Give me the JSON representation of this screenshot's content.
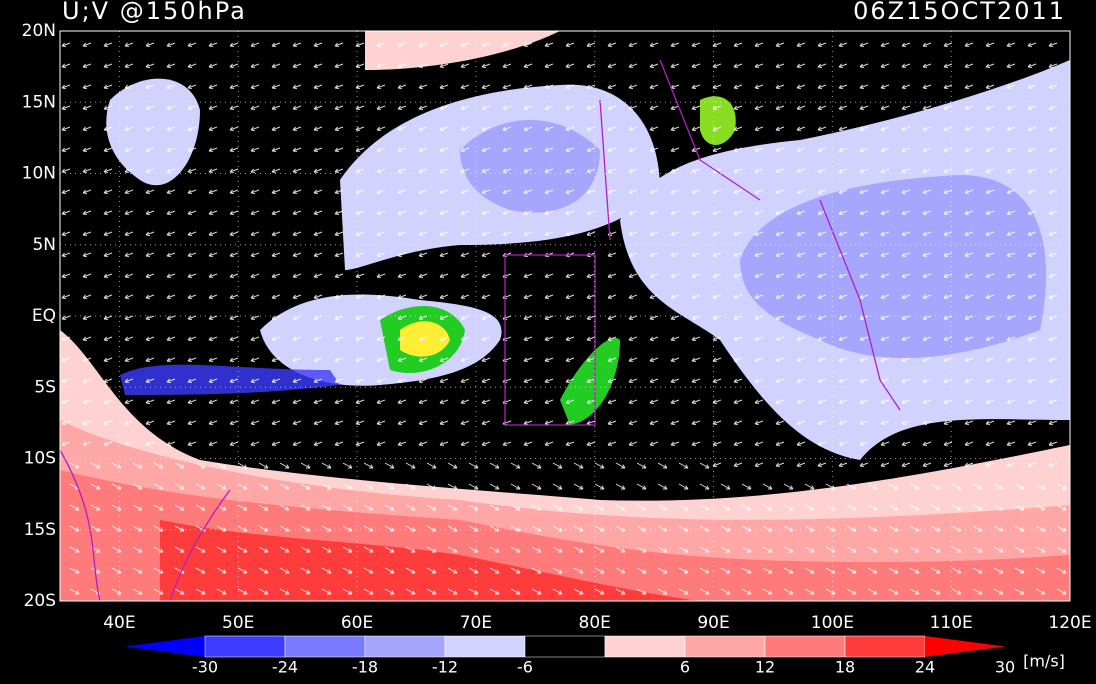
{
  "header": {
    "title": "U;V @150hPa",
    "date": "06Z15OCT2011"
  },
  "map": {
    "lon_range": [
      35,
      120
    ],
    "lat_range": [
      -20,
      20
    ],
    "lat_ticks": [
      {
        "value": 20,
        "label": "20N"
      },
      {
        "value": 15,
        "label": "15N"
      },
      {
        "value": 10,
        "label": "10N"
      },
      {
        "value": 5,
        "label": "5N"
      },
      {
        "value": 0,
        "label": "EQ"
      },
      {
        "value": -5,
        "label": "5S"
      },
      {
        "value": -10,
        "label": "10S"
      },
      {
        "value": -15,
        "label": "15S"
      },
      {
        "value": -20,
        "label": "20S"
      }
    ],
    "lon_ticks": [
      {
        "value": 40,
        "label": "40E"
      },
      {
        "value": 50,
        "label": "50E"
      },
      {
        "value": 60,
        "label": "60E"
      },
      {
        "value": 70,
        "label": "70E"
      },
      {
        "value": 80,
        "label": "80E"
      },
      {
        "value": 90,
        "label": "90E"
      },
      {
        "value": 100,
        "label": "100E"
      },
      {
        "value": 110,
        "label": "110E"
      },
      {
        "value": 120,
        "label": "120E"
      }
    ]
  },
  "colorbar": {
    "ticks": [
      -30,
      -24,
      -18,
      -12,
      -6,
      6,
      12,
      18,
      24,
      30
    ],
    "unit": "[m/s]",
    "colors": [
      "#0000ff",
      "#3c3cff",
      "#7a7aff",
      "#a6a6ff",
      "#d2d2ff",
      "#000000",
      "#ffd2d2",
      "#ffa6a6",
      "#ff7a7a",
      "#ff3c3c",
      "#ff0000"
    ]
  }
}
